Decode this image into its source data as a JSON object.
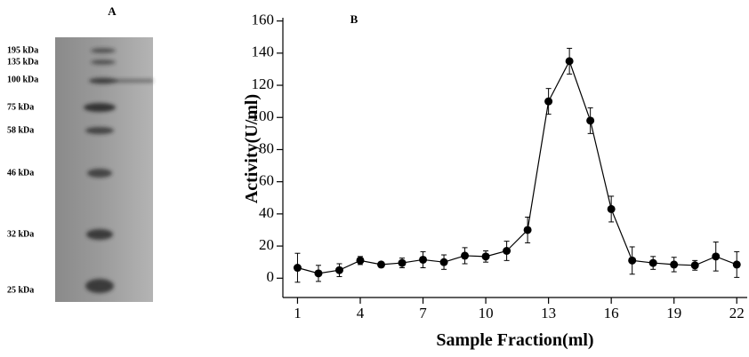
{
  "gel": {
    "label": "A",
    "markers": [
      "195 kDa",
      "135 kDa",
      "100 kDa",
      "75 kDa",
      "58 kDa",
      "46 kDa",
      "32 kDa",
      "25 kDa"
    ]
  },
  "chart_data": {
    "type": "line",
    "panel_label": "B",
    "xlabel": "Sample Fraction(ml)",
    "ylabel": "Activity(U/ml)",
    "x": [
      1,
      2,
      3,
      4,
      5,
      6,
      7,
      8,
      9,
      10,
      11,
      12,
      13,
      14,
      15,
      16,
      17,
      18,
      19,
      20,
      21,
      22
    ],
    "xlim": [
      0.3,
      22.5
    ],
    "xticks": [
      1,
      4,
      7,
      10,
      13,
      16,
      19,
      22
    ],
    "ylim": [
      -12,
      162
    ],
    "yticks": [
      0,
      20,
      40,
      60,
      80,
      100,
      120,
      140,
      160
    ],
    "series": [
      {
        "color": "#000000",
        "values": [
          6.5,
          3,
          5,
          11,
          8.5,
          9.5,
          11.5,
          10,
          14,
          13.5,
          17,
          30,
          110,
          135,
          98,
          43,
          11,
          9.5,
          8.5,
          8,
          13.5,
          8.5
        ],
        "errors": [
          9,
          5,
          4,
          2.5,
          1.5,
          3,
          5,
          4.5,
          5,
          3.5,
          6,
          8,
          8,
          8,
          8,
          8,
          8.5,
          4,
          4.5,
          3,
          9,
          8
        ]
      }
    ]
  }
}
